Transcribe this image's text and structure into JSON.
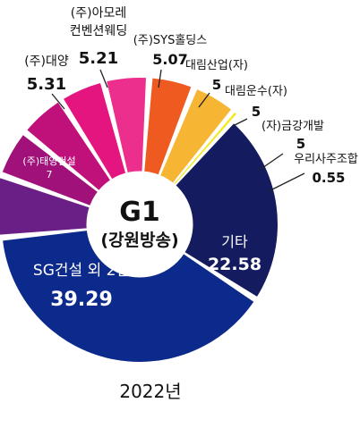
{
  "chart_data": {
    "type": "pie",
    "subtype": "donut",
    "center_title": "G1",
    "center_subtitle": "(강원방송)",
    "year_label": "2022년",
    "slices": [
      {
        "name": "SG건설 외 2인",
        "value": 39.29,
        "value_label": "39.29",
        "color": "#0c2a8c"
      },
      {
        "name": "(주)태영건설",
        "value": 7,
        "value_label": "7",
        "color": "#6a1f86"
      },
      {
        "name": "(주)대양",
        "value": 5.31,
        "value_label": "5.31",
        "color": "#a0127a"
      },
      {
        "name": "(주)아모레 컨벤션웨딩",
        "value": 5.21,
        "value_label": "5.21",
        "color": "#c0107a"
      },
      {
        "name": "(주)SYS홀딩스",
        "value": 5.07,
        "value_label": "5.07",
        "color": "#e5157f"
      },
      {
        "name": "대림산업(자)",
        "value": 5,
        "value_label": "5",
        "color": "#ec2f8c"
      },
      {
        "name": "대림운수(자)",
        "value": 5,
        "value_label": "5",
        "color": "#ef5a21"
      },
      {
        "name": "(자)금강개발",
        "value": 5,
        "value_label": "5",
        "color": "#f7b534"
      },
      {
        "name": "우리사주조합",
        "value": 0.55,
        "value_label": "0.55",
        "color": "#f2ea1f"
      },
      {
        "name": "기타",
        "value": 22.58,
        "value_label": "22.58",
        "color": "#141b5e"
      }
    ]
  }
}
